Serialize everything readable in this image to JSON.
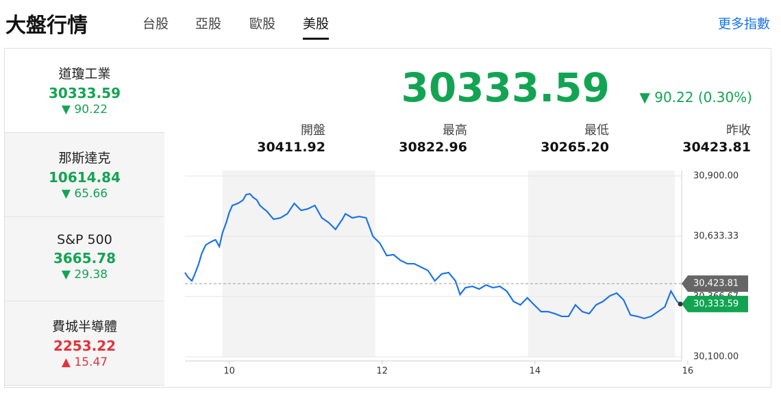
{
  "header": {
    "title": "大盤行情",
    "tabs": [
      "台股",
      "亞股",
      "歐股",
      "美股"
    ],
    "active_tab": 3,
    "more": "更多指數"
  },
  "indices": [
    {
      "name": "道瓊工業",
      "value": "30333.59",
      "change": "90.22",
      "direction": "down"
    },
    {
      "name": "那斯達克",
      "value": "10614.84",
      "change": "65.66",
      "direction": "down"
    },
    {
      "name": "S&P 500",
      "value": "3665.78",
      "change": "29.38",
      "direction": "down"
    },
    {
      "name": "費城半導體",
      "value": "2253.22",
      "change": "15.47",
      "direction": "up"
    }
  ],
  "active_index": 0,
  "quote": {
    "value": "30333.59",
    "change": "90.22 (0.30%)",
    "direction": "down",
    "stats": [
      {
        "label": "開盤",
        "value": "30411.92"
      },
      {
        "label": "最高",
        "value": "30822.96"
      },
      {
        "label": "最低",
        "value": "30265.20"
      },
      {
        "label": "昨收",
        "value": "30423.81"
      }
    ]
  },
  "chart_data": {
    "type": "line",
    "color": "#1a73e8",
    "x": [
      9.42,
      9.46,
      9.51,
      9.55,
      9.6,
      9.64,
      9.69,
      9.73,
      9.78,
      9.82,
      9.87,
      9.91,
      9.96,
      10,
      10.04,
      10.09,
      10.13,
      10.18,
      10.22,
      10.27,
      10.31,
      10.36,
      10.4,
      10.45,
      10.49,
      10.54,
      10.58,
      10.67,
      10.76,
      10.85,
      10.94,
      11.03,
      11.12,
      11.21,
      11.3,
      11.39,
      11.48,
      11.52,
      11.61,
      11.7,
      11.79,
      11.88,
      11.97,
      12.06,
      12.15,
      12.24,
      12.33,
      12.42,
      12.51,
      12.6,
      12.69,
      12.78,
      12.87,
      12.96,
      13.02,
      13.09,
      13.18,
      13.27,
      13.36,
      13.45,
      13.54,
      13.63,
      13.72,
      13.81,
      13.9,
      13.99,
      14.08,
      14.17,
      14.26,
      14.35,
      14.44,
      14.53,
      14.62,
      14.71,
      14.8,
      14.89,
      14.98,
      15.07,
      15.16,
      15.25,
      15.34,
      15.43,
      15.52,
      15.61,
      15.7,
      15.78,
      15.86,
      15.9
    ],
    "values": [
      30473,
      30452,
      30436,
      30467,
      30512,
      30558,
      30594,
      30603,
      30612,
      30618,
      30588,
      30648,
      30694,
      30739,
      30770,
      30776,
      30782,
      30794,
      30818,
      30821,
      30806,
      30794,
      30770,
      30755,
      30745,
      30724,
      30709,
      30715,
      30733,
      30779,
      30748,
      30755,
      30770,
      30715,
      30694,
      30664,
      30709,
      30733,
      30715,
      30721,
      30715,
      30633,
      30603,
      30548,
      30552,
      30527,
      30512,
      30512,
      30497,
      30482,
      30436,
      30467,
      30473,
      30436,
      30376,
      30406,
      30412,
      30400,
      30418,
      30406,
      30412,
      30391,
      30345,
      30330,
      30361,
      30330,
      30300,
      30300,
      30291,
      30279,
      30279,
      30330,
      30300,
      30291,
      30330,
      30345,
      30370,
      30382,
      30352,
      30285,
      30279,
      30270,
      30279,
      30300,
      30321,
      30391,
      30345,
      30333.59
    ],
    "xlim": [
      9.42,
      15.92
    ],
    "xticks": [
      10,
      12,
      14,
      16
    ],
    "ylim": [
      30100,
      30900
    ],
    "yticks": [
      {
        "value": 30100,
        "label": "30,100.00"
      },
      {
        "value": 30366.67,
        "label": "30,366.67"
      },
      {
        "value": 30633.33,
        "label": "30,633.33"
      },
      {
        "value": 30900,
        "label": "30,900.00"
      }
    ],
    "grid": true,
    "reference": {
      "value": 30423.81,
      "label": "30,423.81"
    },
    "last": {
      "value": 30333.59,
      "label": "30,333.59"
    }
  }
}
